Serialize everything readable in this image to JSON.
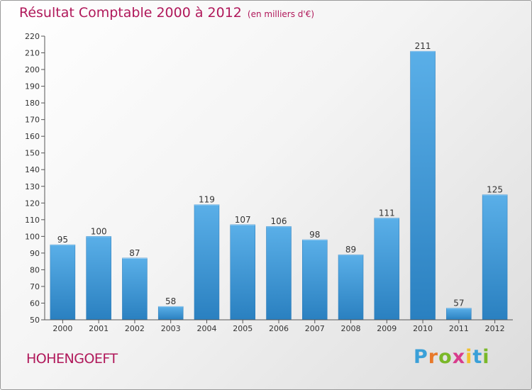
{
  "header": {
    "title": "Résultat Comptable 2000 à 2012",
    "subtitle": "(en milliers d'€)"
  },
  "footer": {
    "commune": "HOHENGOEFT"
  },
  "logo": {
    "letters": [
      "P",
      "r",
      "o",
      "x",
      "i",
      "t",
      "i"
    ],
    "colors": [
      "#3aa0d8",
      "#e8792a",
      "#7ab829",
      "#d83c8c",
      "#f2c12e",
      "#3aa0d8",
      "#7ab829"
    ]
  },
  "colors": {
    "bar_light": "#5aafe8",
    "bar_dark": "#2a80c0",
    "title": "#b0185a"
  },
  "chart_data": {
    "type": "bar",
    "title": "Résultat Comptable 2000 à 2012",
    "subtitle": "(en milliers d'€)",
    "categories": [
      "2000",
      "2001",
      "2002",
      "2003",
      "2004",
      "2005",
      "2006",
      "2007",
      "2008",
      "2009",
      "2010",
      "2011",
      "2012"
    ],
    "values": [
      95,
      100,
      87,
      58,
      119,
      107,
      106,
      98,
      89,
      111,
      211,
      57,
      125
    ],
    "ylim": [
      50,
      220
    ],
    "ytick_step": 10,
    "grid": false,
    "legend": "none"
  }
}
